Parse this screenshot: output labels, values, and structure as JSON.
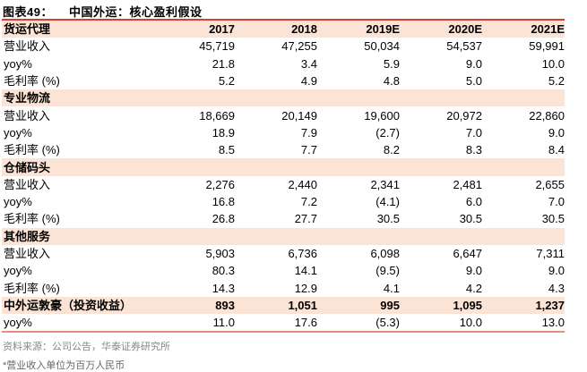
{
  "title": {
    "label": "图表49：",
    "text": "中国外运：核心盈利假设"
  },
  "columns": [
    "2017",
    "2018",
    "2019E",
    "2020E",
    "2021E"
  ],
  "header_label": "货运代理",
  "rows": [
    {
      "label": "营业收入",
      "values": [
        "45,719",
        "47,255",
        "50,034",
        "54,537",
        "59,991"
      ]
    },
    {
      "label": "yoy%",
      "values": [
        "21.8",
        "3.4",
        "5.9",
        "9.0",
        "10.0"
      ]
    },
    {
      "label": "毛利率 (%)",
      "values": [
        "5.2",
        "4.9",
        "4.8",
        "5.0",
        "5.2"
      ]
    },
    {
      "label": "专业物流",
      "section": true,
      "values": [
        "",
        "",
        "",
        "",
        ""
      ]
    },
    {
      "label": "营业收入",
      "values": [
        "18,669",
        "20,149",
        "19,600",
        "20,972",
        "22,860"
      ]
    },
    {
      "label": "yoy%",
      "values": [
        "18.9",
        "7.9",
        "(2.7)",
        "7.0",
        "9.0"
      ]
    },
    {
      "label": "毛利率 (%)",
      "values": [
        "8.5",
        "7.7",
        "8.2",
        "8.3",
        "8.4"
      ]
    },
    {
      "label": "仓储码头",
      "section": true,
      "values": [
        "",
        "",
        "",
        "",
        ""
      ]
    },
    {
      "label": "营业收入",
      "values": [
        "2,276",
        "2,440",
        "2,341",
        "2,481",
        "2,655"
      ]
    },
    {
      "label": "yoy%",
      "values": [
        "16.8",
        "7.2",
        "(4.1)",
        "6.0",
        "7.0"
      ]
    },
    {
      "label": "毛利率 (%)",
      "values": [
        "26.8",
        "27.7",
        "30.5",
        "30.5",
        "30.5"
      ]
    },
    {
      "label": "其他服务",
      "section": true,
      "values": [
        "",
        "",
        "",
        "",
        ""
      ]
    },
    {
      "label": "营业收入",
      "values": [
        "5,903",
        "6,736",
        "6,098",
        "6,647",
        "7,311"
      ]
    },
    {
      "label": "yoy%",
      "values": [
        "80.3",
        "14.1",
        "(9.5)",
        "9.0",
        "9.0"
      ]
    },
    {
      "label": "毛利率 (%)",
      "values": [
        "14.3",
        "12.9",
        "4.1",
        "4.2",
        "4.3"
      ]
    },
    {
      "label": "中外运敦豪（投资收益）",
      "section": true,
      "values": [
        "893",
        "1,051",
        "995",
        "1,095",
        "1,237"
      ]
    },
    {
      "label": "yoy%",
      "values": [
        "11.0",
        "17.6",
        "(5.3)",
        "10.0",
        "13.0"
      ]
    }
  ],
  "source": "资料来源：公司公告，华泰证券研究所",
  "footnote": "*营业收入单位为百万人民币",
  "colors": {
    "accent_line": "#e03a2c",
    "section_bg": "#fbe4d5"
  }
}
